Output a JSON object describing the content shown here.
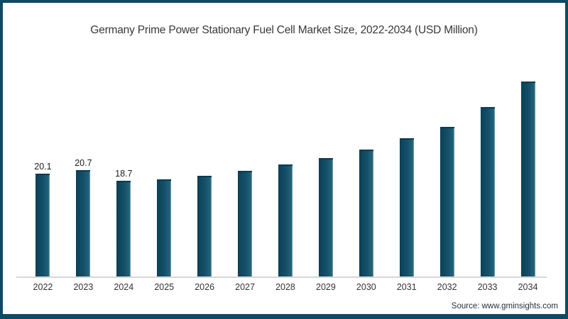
{
  "frame": {
    "border_color": "#0e4a63",
    "background": "#ffffff"
  },
  "title": "Germany Prime Power Stationary Fuel Cell Market Size, 2022-2034 (USD Million)",
  "source_note": "Source: www.gminsights.com",
  "chart_data": {
    "type": "bar",
    "title": "Germany Prime Power Stationary Fuel Cell Market Size, 2022-2034 (USD Million)",
    "categories": [
      "2022",
      "2023",
      "2024",
      "2025",
      "2026",
      "2027",
      "2028",
      "2029",
      "2030",
      "2031",
      "2032",
      "2033",
      "2034"
    ],
    "values": [
      20.1,
      20.7,
      18.7,
      19.0,
      19.7,
      20.6,
      21.8,
      23.1,
      24.8,
      26.9,
      29.2,
      33.0,
      37.9
    ],
    "data_labels": [
      "20.1",
      "20.7",
      "18.7",
      "",
      "",
      "",
      "",
      "",
      "",
      "",
      "",
      "",
      ""
    ],
    "labeled_values_note": "Only 2022, 2023 and 2024 bars carry data labels; remaining values estimated from bar heights",
    "xlabel": "",
    "ylabel": "",
    "ylim": [
      0,
      40
    ],
    "y_axis_shown": false,
    "grid": false,
    "legend": "none",
    "bar_color": "#145169",
    "axis_line_color": "#d6d6d6",
    "label_color": "#1c1c1c",
    "tick_label_color": "#333333"
  }
}
